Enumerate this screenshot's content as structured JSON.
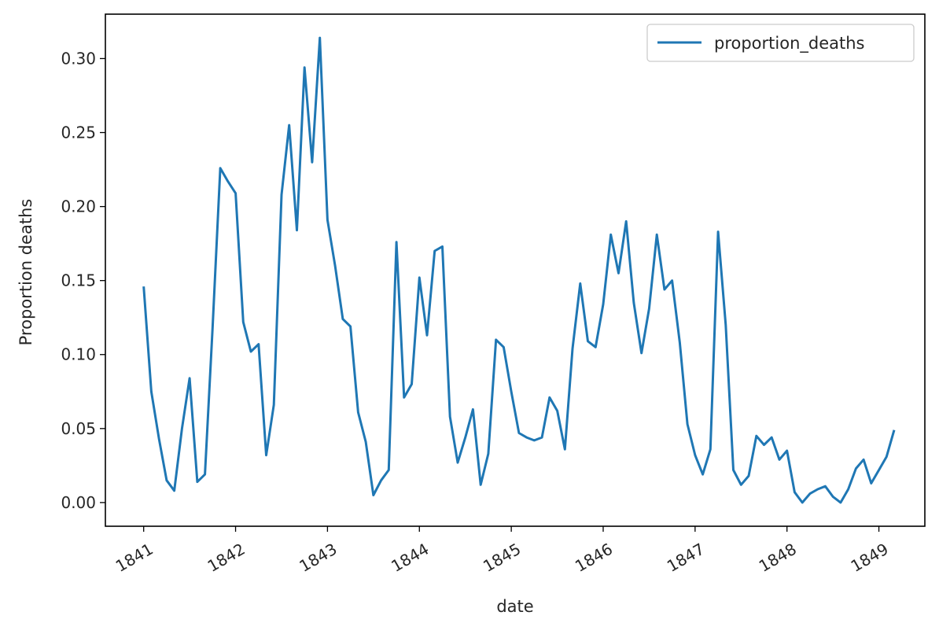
{
  "chart_data": {
    "type": "line",
    "title": "",
    "xlabel": "date",
    "ylabel": "Proportion deaths",
    "x_ticks": [
      "1841",
      "1842",
      "1843",
      "1844",
      "1845",
      "1846",
      "1847",
      "1848",
      "1849"
    ],
    "y_ticks": [
      "0.00",
      "0.05",
      "0.10",
      "0.15",
      "0.20",
      "0.25",
      "0.30"
    ],
    "xlim": [
      "1840-08",
      "1849-07"
    ],
    "ylim": [
      -0.016,
      0.33
    ],
    "grid": false,
    "legend_placement": "top-right",
    "series": [
      {
        "name": "proportion_deaths",
        "color": "#1f77b4",
        "x": [
          "1841-01",
          "1841-02",
          "1841-03",
          "1841-04",
          "1841-05",
          "1841-06",
          "1841-07",
          "1841-08",
          "1841-09",
          "1841-10",
          "1841-11",
          "1841-12",
          "1842-01",
          "1842-02",
          "1842-03",
          "1842-04",
          "1842-05",
          "1842-06",
          "1842-07",
          "1842-08",
          "1842-09",
          "1842-10",
          "1842-11",
          "1842-12",
          "1843-01",
          "1843-02",
          "1843-03",
          "1843-04",
          "1843-05",
          "1843-06",
          "1843-07",
          "1843-08",
          "1843-09",
          "1843-10",
          "1843-11",
          "1843-12",
          "1844-01",
          "1844-02",
          "1844-03",
          "1844-04",
          "1844-05",
          "1844-06",
          "1844-07",
          "1844-08",
          "1844-09",
          "1844-10",
          "1844-11",
          "1844-12",
          "1845-01",
          "1845-02",
          "1845-03",
          "1845-04",
          "1845-05",
          "1845-06",
          "1845-07",
          "1845-08",
          "1845-09",
          "1845-10",
          "1845-11",
          "1845-12",
          "1846-01",
          "1846-02",
          "1846-03",
          "1846-04",
          "1846-05",
          "1846-06",
          "1846-07",
          "1846-08",
          "1846-09",
          "1846-10",
          "1846-11",
          "1846-12",
          "1847-01",
          "1847-02",
          "1847-03",
          "1847-04",
          "1847-05",
          "1847-06",
          "1847-07",
          "1847-08",
          "1847-09",
          "1847-10",
          "1847-11",
          "1847-12",
          "1848-01",
          "1848-02",
          "1848-03",
          "1848-04",
          "1848-05",
          "1848-06",
          "1848-07",
          "1848-08",
          "1848-09",
          "1848-10",
          "1848-11",
          "1848-12",
          "1849-01",
          "1849-02",
          "1849-03"
        ],
        "values": [
          0.146,
          0.075,
          0.043,
          0.015,
          0.008,
          0.05,
          0.084,
          0.014,
          0.019,
          0.118,
          0.226,
          0.217,
          0.209,
          0.122,
          0.102,
          0.107,
          0.032,
          0.066,
          0.208,
          0.255,
          0.184,
          0.294,
          0.23,
          0.314,
          0.191,
          0.16,
          0.124,
          0.119,
          0.061,
          0.041,
          0.005,
          0.015,
          0.022,
          0.176,
          0.071,
          0.08,
          0.152,
          0.113,
          0.17,
          0.173,
          0.058,
          0.027,
          0.044,
          0.063,
          0.012,
          0.033,
          0.11,
          0.105,
          0.075,
          0.047,
          0.044,
          0.042,
          0.044,
          0.071,
          0.062,
          0.036,
          0.104,
          0.148,
          0.109,
          0.105,
          0.134,
          0.181,
          0.155,
          0.19,
          0.135,
          0.101,
          0.131,
          0.181,
          0.144,
          0.15,
          0.108,
          0.053,
          0.032,
          0.019,
          0.036,
          0.183,
          0.12,
          0.022,
          0.012,
          0.018,
          0.045,
          0.039,
          0.044,
          0.029,
          0.035,
          0.007,
          0.0,
          0.006,
          0.009,
          0.011,
          0.004,
          0.0,
          0.009,
          0.023,
          0.029,
          0.013,
          0.022,
          0.031,
          0.049
        ]
      }
    ]
  }
}
